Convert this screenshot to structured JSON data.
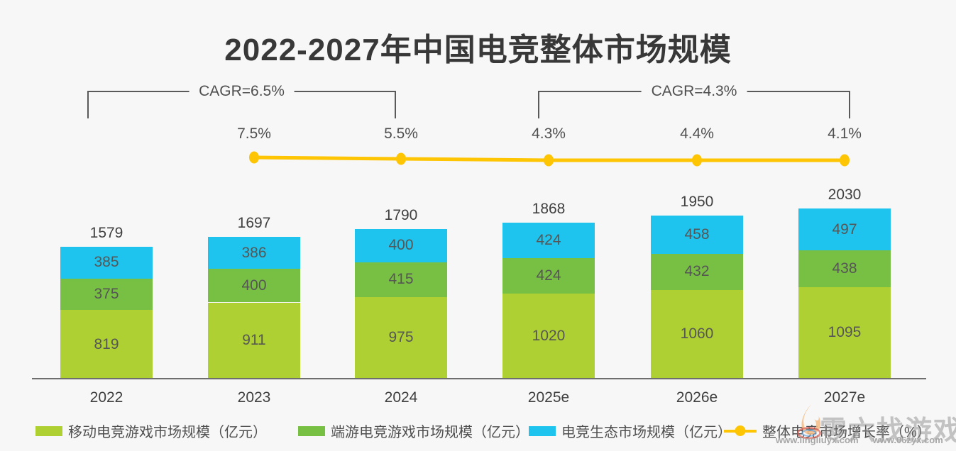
{
  "page": {
    "background": "#f7f7f7"
  },
  "title": "2022-2027年中国电竞整体市场规模",
  "cagr_brackets": [
    {
      "label": "CAGR=6.5%",
      "span": [
        "2022",
        "2024"
      ]
    },
    {
      "label": "CAGR=4.3%",
      "span": [
        "2025e",
        "2027e"
      ]
    }
  ],
  "chart_data": {
    "type": "bar",
    "subtype": "stacked-bar-with-growth-line",
    "title": "2022-2027年中国电竞整体市场规模",
    "unit": "亿元",
    "grid": false,
    "legend_position": "bottom",
    "categories": [
      "2022",
      "2023",
      "2024",
      "2025e",
      "2026e",
      "2027e"
    ],
    "series": [
      {
        "name": "移动电竞游戏市场规模（亿元）",
        "color": "#aed032",
        "values": [
          819,
          911,
          975,
          1020,
          1060,
          1095
        ]
      },
      {
        "name": "端游电竞游戏市场规模（亿元）",
        "color": "#78c043",
        "values": [
          375,
          400,
          415,
          424,
          432,
          438
        ]
      },
      {
        "name": "电竞生态市场规模（亿元）",
        "color": "#1ec4ed",
        "values": [
          385,
          386,
          400,
          424,
          458,
          497
        ]
      }
    ],
    "totals": [
      1579,
      1697,
      1790,
      1868,
      1950,
      2030
    ],
    "line_series": {
      "name": "整体电竞市场增长率（%）",
      "color": "#fdc504",
      "categories": [
        "2023",
        "2024",
        "2025e",
        "2026e",
        "2027e"
      ],
      "values": [
        7.5,
        5.5,
        4.3,
        4.4,
        4.1
      ],
      "labels": [
        "7.5%",
        "5.5%",
        "4.3%",
        "4.4%",
        "4.1%"
      ]
    }
  },
  "watermark": {
    "brand": "零六找游戏",
    "url1": "www.lingliuyx.com",
    "url2": "www.06zyx.com"
  }
}
